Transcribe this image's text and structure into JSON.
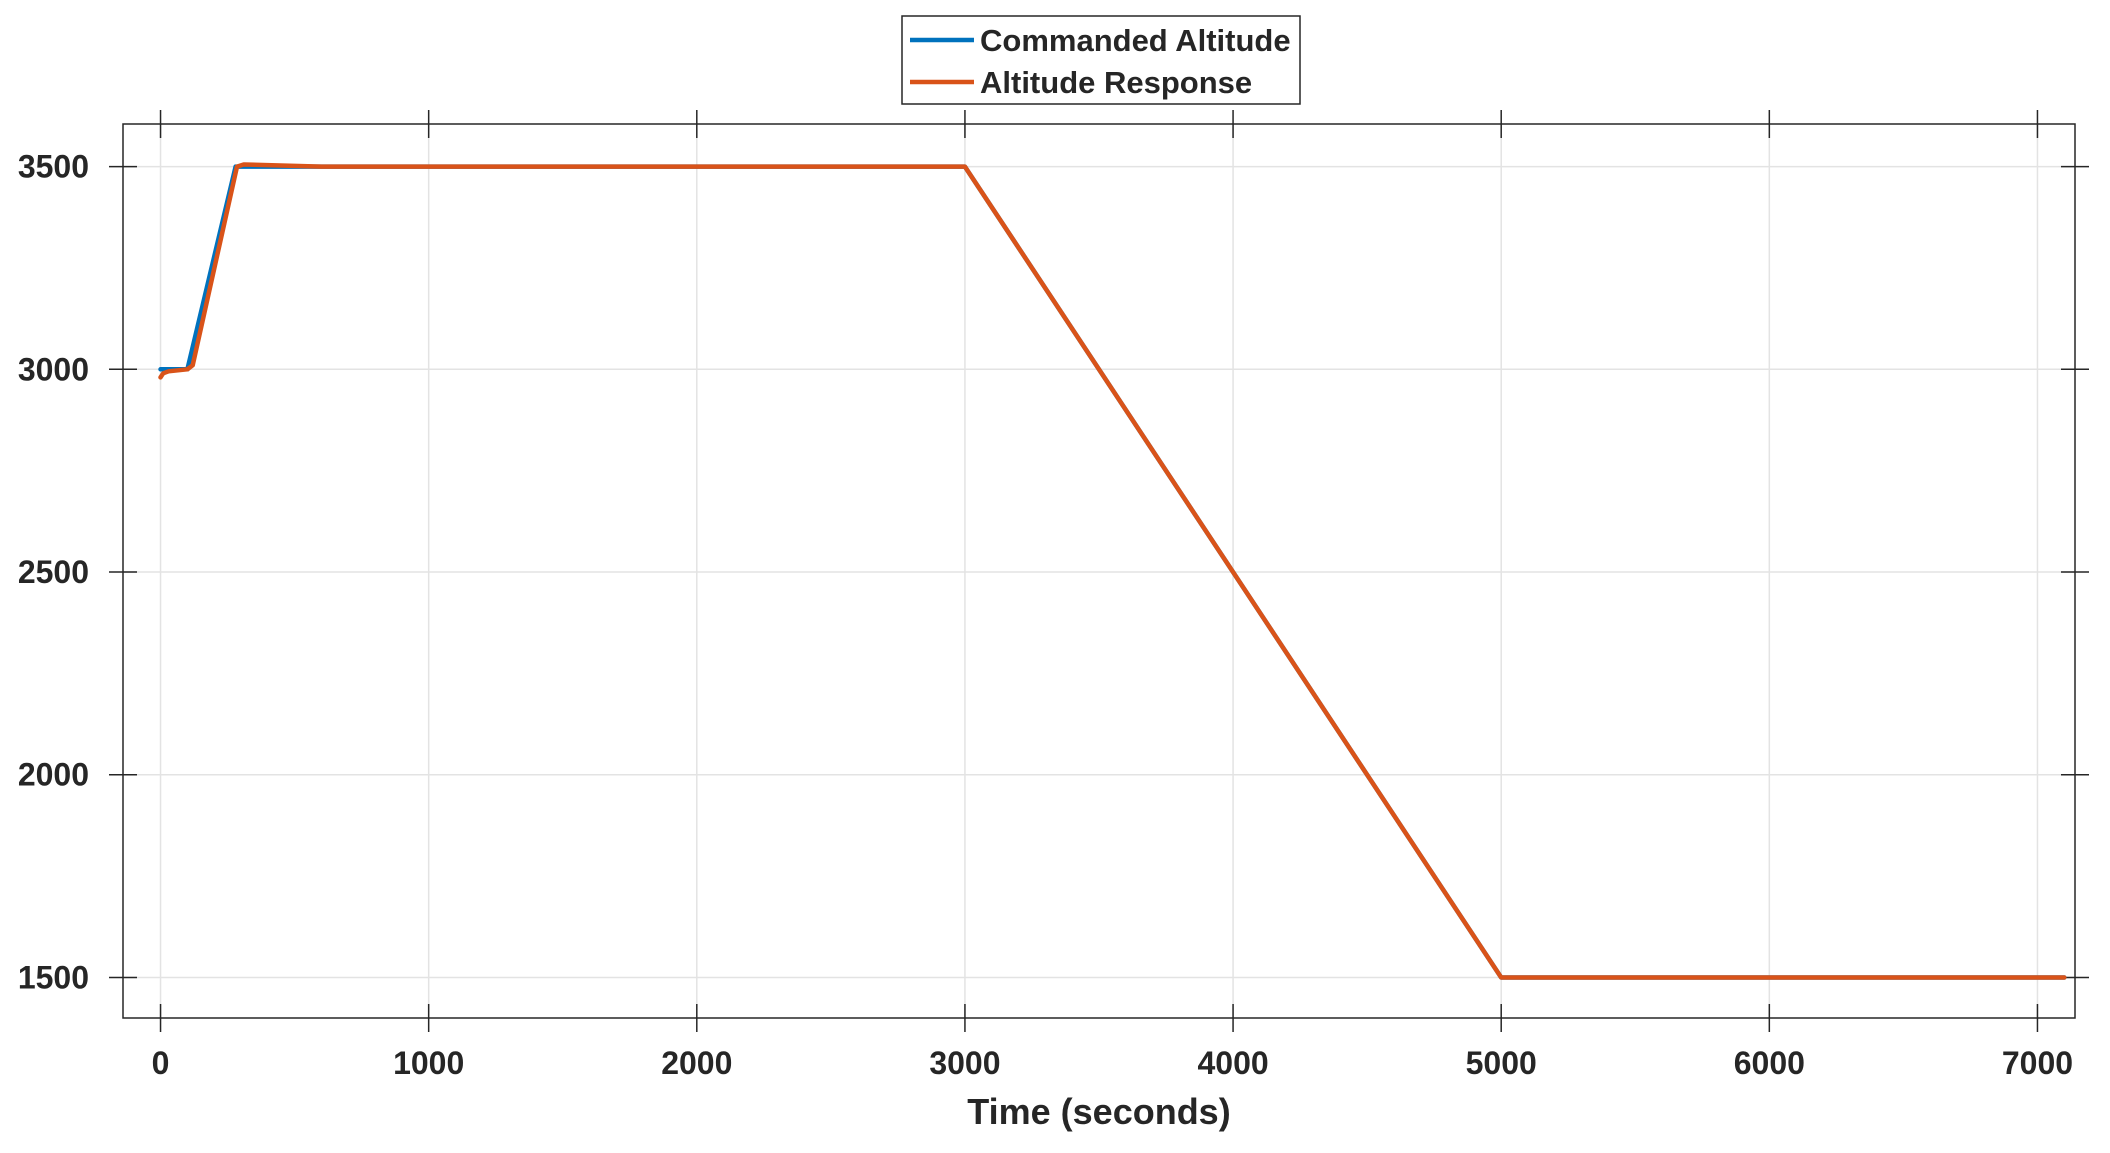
{
  "chart_data": {
    "type": "line",
    "title": "",
    "xlabel": "Time (seconds)",
    "ylabel": "",
    "xlim": [
      -140,
      7140
    ],
    "ylim": [
      1400,
      3605
    ],
    "xticks": [
      0,
      1000,
      2000,
      3000,
      4000,
      5000,
      6000,
      7000
    ],
    "yticks": [
      1500,
      2000,
      2500,
      3000,
      3500
    ],
    "xtick_labels": [
      "0",
      "1000",
      "2000",
      "3000",
      "4000",
      "5000",
      "6000",
      "7000"
    ],
    "ytick_labels": [
      "1500",
      "2000",
      "2500",
      "3000",
      "3500"
    ],
    "grid": true,
    "legend_position": "top-center, outside",
    "series": [
      {
        "name": "Commanded Altitude",
        "color": "#0072BD",
        "x": [
          0,
          100,
          280,
          3000,
          5000,
          7100
        ],
        "y": [
          3000,
          3000,
          3500,
          3500,
          1500,
          1500
        ]
      },
      {
        "name": "Altitude Response",
        "color": "#D95319",
        "x": [
          0,
          10,
          30,
          100,
          120,
          285,
          310,
          600,
          3000,
          5000,
          5050,
          7100
        ],
        "y": [
          2980,
          2990,
          2995,
          3000,
          3010,
          3500,
          3505,
          3500,
          3500,
          1500,
          1500,
          1500
        ]
      }
    ]
  }
}
